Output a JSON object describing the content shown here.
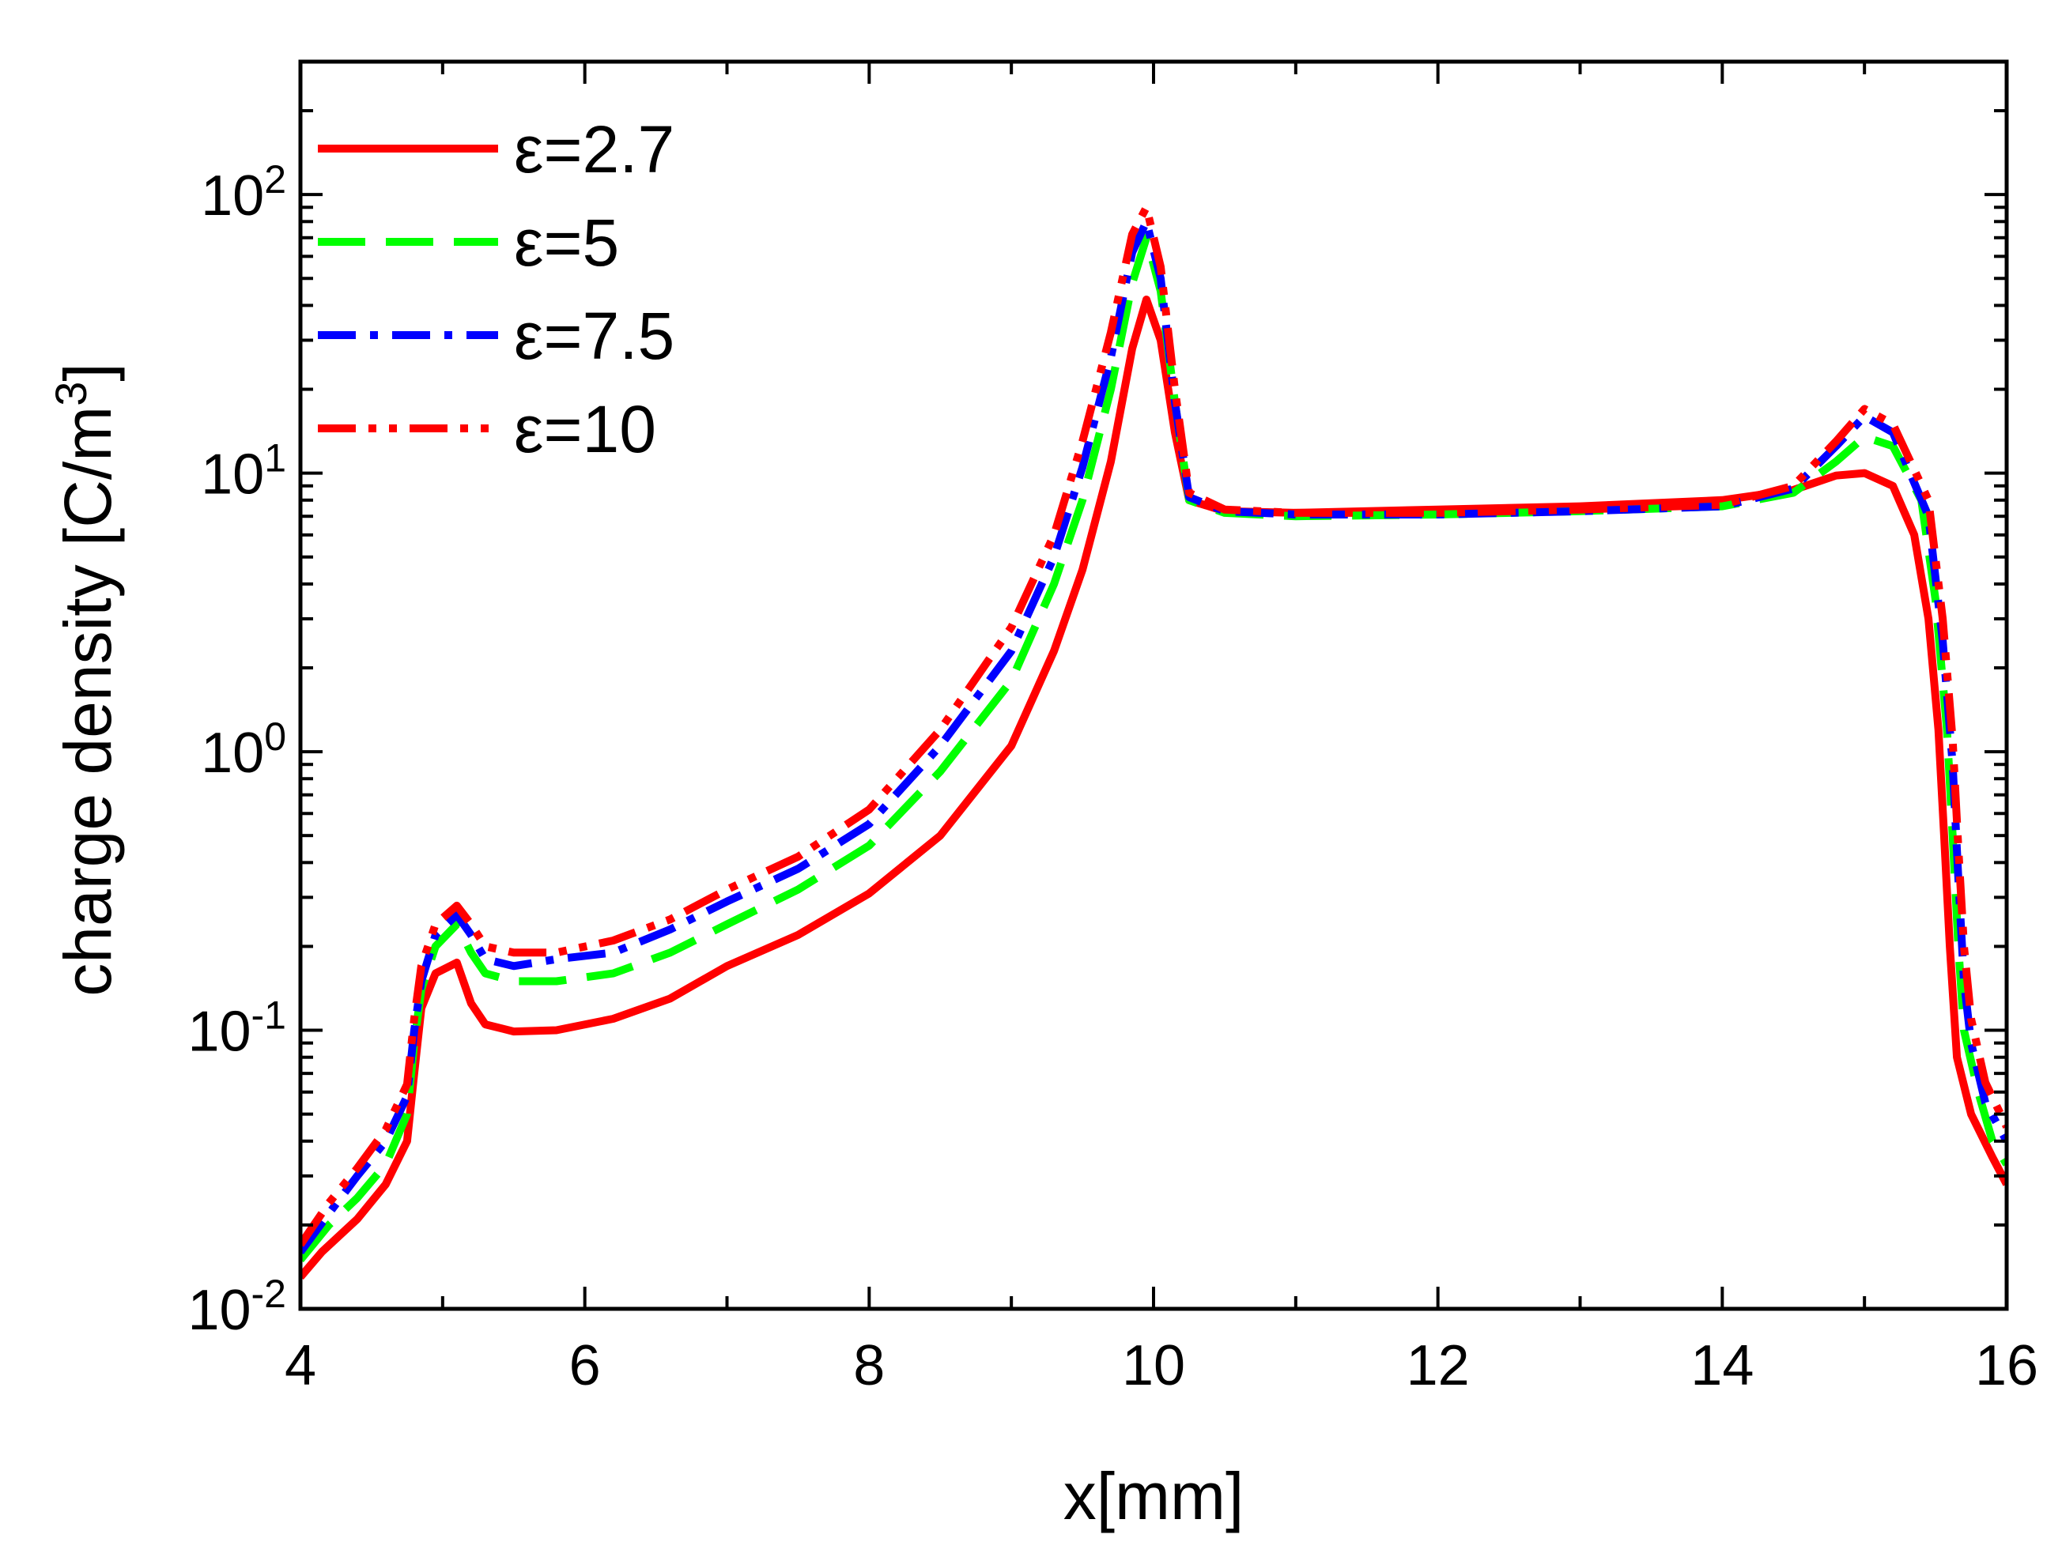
{
  "chart_data": {
    "type": "line",
    "title": "",
    "xlabel": "x[mm]",
    "ylabel_main": "charge density [C/m",
    "ylabel_sup": "3",
    "ylabel_close": "]",
    "xlim": [
      4,
      16
    ],
    "ylim": [
      0.01,
      300
    ],
    "yscale": "log",
    "grid": false,
    "legend_position": "top-left",
    "x_ticks": [
      {
        "value": 4,
        "label": "4"
      },
      {
        "value": 6,
        "label": "6"
      },
      {
        "value": 8,
        "label": "8"
      },
      {
        "value": 10,
        "label": "10"
      },
      {
        "value": 12,
        "label": "12"
      },
      {
        "value": 14,
        "label": "14"
      },
      {
        "value": 16,
        "label": "16"
      }
    ],
    "y_ticks": [
      {
        "value": 0.01,
        "base": "10",
        "exp": "-2"
      },
      {
        "value": 0.1,
        "base": "10",
        "exp": "-1"
      },
      {
        "value": 1,
        "base": "10",
        "exp": "0"
      },
      {
        "value": 10,
        "base": "10",
        "exp": "1"
      },
      {
        "value": 100,
        "base": "10",
        "exp": "2"
      }
    ],
    "series": [
      {
        "name": "ε=2.7",
        "color": "#ff0000",
        "dash": "solid",
        "x": [
          4.0,
          4.15,
          4.4,
          4.6,
          4.75,
          4.8,
          4.85,
          4.95,
          5.1,
          5.2,
          5.3,
          5.5,
          5.8,
          6.2,
          6.6,
          7.0,
          7.5,
          8.0,
          8.5,
          9.0,
          9.3,
          9.5,
          9.7,
          9.85,
          9.95,
          10.05,
          10.15,
          10.25,
          10.5,
          11.0,
          12.0,
          13.0,
          14.0,
          14.5,
          14.8,
          15.0,
          15.2,
          15.35,
          15.45,
          15.52,
          15.56,
          15.6,
          15.65,
          15.75,
          15.9,
          16.0
        ],
        "y": [
          0.013,
          0.016,
          0.021,
          0.028,
          0.04,
          0.07,
          0.12,
          0.16,
          0.175,
          0.125,
          0.105,
          0.099,
          0.1,
          0.11,
          0.13,
          0.17,
          0.22,
          0.31,
          0.5,
          1.05,
          2.3,
          4.5,
          11.0,
          28.0,
          42.0,
          30.0,
          14.0,
          8.0,
          7.3,
          7.2,
          7.4,
          7.6,
          8.0,
          8.7,
          9.8,
          10.0,
          9.0,
          6.0,
          3.0,
          1.2,
          0.5,
          0.2,
          0.08,
          0.05,
          0.035,
          0.028
        ]
      },
      {
        "name": "ε=5",
        "color": "#00ff00",
        "dash": "dash",
        "x": [
          4.0,
          4.2,
          4.4,
          4.6,
          4.75,
          4.8,
          4.85,
          4.95,
          5.1,
          5.2,
          5.3,
          5.5,
          5.8,
          6.2,
          6.6,
          7.0,
          7.5,
          8.0,
          8.5,
          9.0,
          9.3,
          9.5,
          9.7,
          9.85,
          9.95,
          10.05,
          10.15,
          10.25,
          10.5,
          11.0,
          12.0,
          13.0,
          14.0,
          14.5,
          14.8,
          15.0,
          15.2,
          15.4,
          15.5,
          15.58,
          15.62,
          15.66,
          15.7,
          15.8,
          15.9,
          16.0
        ],
        "y": [
          0.015,
          0.02,
          0.025,
          0.033,
          0.05,
          0.09,
          0.14,
          0.2,
          0.24,
          0.19,
          0.16,
          0.15,
          0.15,
          0.16,
          0.19,
          0.24,
          0.32,
          0.46,
          0.85,
          1.8,
          4.0,
          8.0,
          20.0,
          48.0,
          70.0,
          45.0,
          18.0,
          8.0,
          7.2,
          7.0,
          7.1,
          7.3,
          7.6,
          8.5,
          11.0,
          13.5,
          12.5,
          8.0,
          3.5,
          1.2,
          0.5,
          0.2,
          0.1,
          0.06,
          0.04,
          0.033
        ]
      },
      {
        "name": "ε=7.5",
        "color": "#0000ff",
        "dash": "dashdot",
        "x": [
          4.0,
          4.2,
          4.4,
          4.6,
          4.75,
          4.8,
          4.85,
          4.95,
          5.1,
          5.2,
          5.3,
          5.5,
          5.8,
          6.2,
          6.6,
          7.0,
          7.5,
          8.0,
          8.5,
          9.0,
          9.3,
          9.5,
          9.7,
          9.85,
          9.95,
          10.05,
          10.15,
          10.25,
          10.5,
          11.0,
          12.0,
          13.0,
          14.0,
          14.5,
          14.8,
          15.0,
          15.2,
          15.45,
          15.55,
          15.62,
          15.66,
          15.7,
          15.75,
          15.85,
          16.0
        ],
        "y": [
          0.016,
          0.022,
          0.03,
          0.04,
          0.058,
          0.1,
          0.15,
          0.22,
          0.26,
          0.22,
          0.18,
          0.17,
          0.18,
          0.19,
          0.23,
          0.29,
          0.38,
          0.55,
          1.05,
          2.3,
          5.0,
          10.5,
          26.0,
          62.0,
          80.0,
          50.0,
          18.0,
          8.2,
          7.3,
          7.1,
          7.1,
          7.3,
          7.6,
          8.8,
          12.5,
          16.0,
          14.0,
          7.0,
          2.5,
          0.9,
          0.35,
          0.15,
          0.09,
          0.055,
          0.04
        ]
      },
      {
        "name": "ε=10",
        "color": "#ff0000",
        "dash": "dashdotdot",
        "x": [
          4.0,
          4.2,
          4.4,
          4.6,
          4.75,
          4.8,
          4.85,
          4.95,
          5.1,
          5.2,
          5.3,
          5.5,
          5.8,
          6.2,
          6.6,
          7.0,
          7.5,
          8.0,
          8.5,
          9.0,
          9.3,
          9.5,
          9.7,
          9.85,
          9.95,
          10.05,
          10.15,
          10.25,
          10.5,
          11.0,
          12.0,
          13.0,
          14.0,
          14.5,
          14.8,
          15.0,
          15.2,
          15.45,
          15.55,
          15.62,
          15.66,
          15.7,
          15.75,
          15.85,
          16.0
        ],
        "y": [
          0.017,
          0.024,
          0.032,
          0.044,
          0.064,
          0.11,
          0.17,
          0.24,
          0.28,
          0.24,
          0.2,
          0.19,
          0.19,
          0.21,
          0.25,
          0.32,
          0.42,
          0.62,
          1.2,
          2.8,
          6.0,
          13.0,
          32.0,
          72.0,
          90.0,
          55.0,
          20.0,
          8.5,
          7.4,
          7.2,
          7.2,
          7.4,
          7.7,
          9.0,
          13.0,
          17.0,
          15.0,
          8.0,
          3.0,
          1.1,
          0.45,
          0.2,
          0.11,
          0.065,
          0.045
        ]
      }
    ]
  }
}
